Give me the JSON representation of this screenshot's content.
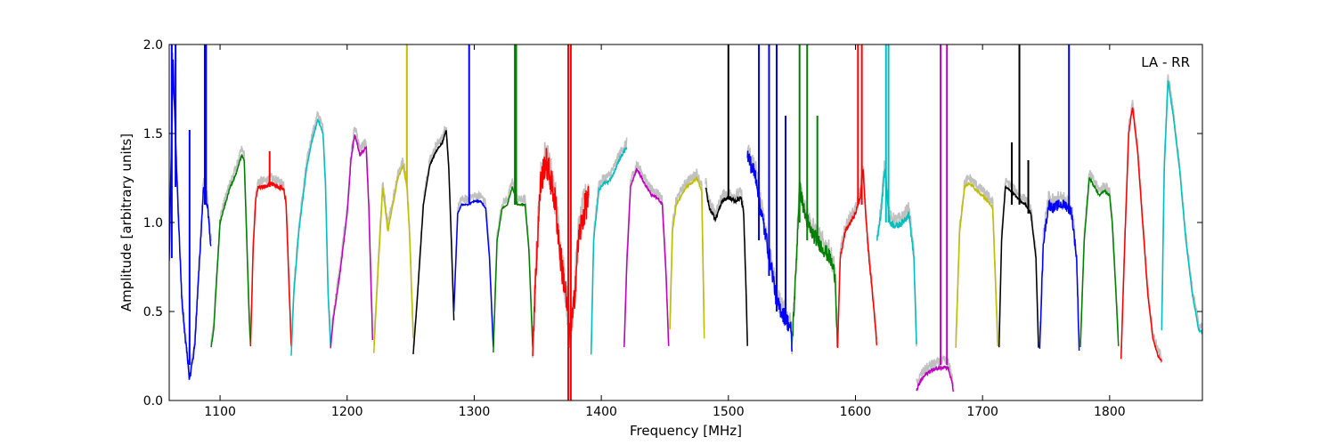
{
  "chart_data": {
    "type": "line",
    "xlabel": "Frequency [MHz]",
    "ylabel": "Amplitude [arbitrary units]",
    "xlim": [
      1060,
      1873
    ],
    "ylim": [
      0.0,
      2.0
    ],
    "xticks": [
      1100,
      1200,
      1300,
      1400,
      1500,
      1600,
      1700,
      1800
    ],
    "xtick_labels": [
      "1100",
      "1200",
      "1300",
      "1400",
      "1500",
      "1600",
      "1700",
      "1800"
    ],
    "yticks": [
      0.0,
      0.5,
      1.0,
      1.5,
      2.0
    ],
    "ytick_labels": [
      "0.0",
      "0.5",
      "1.0",
      "1.5",
      "2.0"
    ],
    "legend": {
      "text": "LA - RR",
      "placement": "top-right"
    },
    "background_color": "#c0c0c0",
    "bands": [
      {
        "color": "#0000ff",
        "noise": 0.02,
        "x": [
          1060,
          1063,
          1066,
          1070,
          1074,
          1076,
          1080,
          1084,
          1087,
          1090,
          1093
        ],
        "y": [
          0.8,
          1.9,
          1.25,
          0.55,
          0.25,
          0.12,
          0.3,
          0.8,
          1.2,
          1.1,
          0.85
        ]
      },
      {
        "color": "#008000",
        "noise": 0.006,
        "x": [
          1093,
          1095,
          1100,
          1108,
          1113,
          1117,
          1119,
          1121,
          1123,
          1124
        ],
        "y": [
          0.3,
          0.4,
          1.0,
          1.2,
          1.28,
          1.38,
          1.35,
          0.9,
          0.45,
          0.3
        ]
      },
      {
        "color": "#ff0000",
        "noise": 0.01,
        "x": [
          1124,
          1126,
          1128,
          1130,
          1135,
          1140,
          1145,
          1150,
          1152,
          1154,
          1156
        ],
        "y": [
          0.3,
          0.85,
          1.12,
          1.2,
          1.2,
          1.22,
          1.2,
          1.19,
          1.1,
          0.7,
          0.3
        ]
      },
      {
        "color": "#00bfbf",
        "noise": 0.005,
        "x": [
          1156,
          1158,
          1162,
          1168,
          1172,
          1177,
          1181,
          1183,
          1185,
          1187
        ],
        "y": [
          0.25,
          0.6,
          0.95,
          1.3,
          1.45,
          1.58,
          1.5,
          1.2,
          0.6,
          0.3
        ]
      },
      {
        "color": "#bf00bf",
        "noise": 0.01,
        "x": [
          1187,
          1189,
          1195,
          1200,
          1203,
          1206,
          1210,
          1215,
          1217,
          1219,
          1220
        ],
        "y": [
          0.3,
          0.45,
          0.75,
          1.05,
          1.35,
          1.5,
          1.38,
          1.42,
          1.1,
          0.6,
          0.35
        ]
      },
      {
        "color": "#bfbf00",
        "noise": 0.006,
        "x": [
          1221,
          1223,
          1228,
          1232,
          1236,
          1240,
          1244,
          1247,
          1249,
          1252
        ],
        "y": [
          0.27,
          0.55,
          1.2,
          0.95,
          1.1,
          1.25,
          1.32,
          1.2,
          0.95,
          0.35
        ]
      },
      {
        "color": "#000000",
        "noise": 0.004,
        "x": [
          1252,
          1255,
          1260,
          1265,
          1270,
          1275,
          1278,
          1280,
          1282,
          1284
        ],
        "y": [
          0.26,
          0.55,
          1.1,
          1.32,
          1.4,
          1.45,
          1.52,
          1.3,
          0.9,
          0.45
        ]
      },
      {
        "color": "#0000ff",
        "noise": 0.003,
        "x": [
          1284,
          1287,
          1290,
          1295,
          1300,
          1305,
          1309,
          1312,
          1315
        ],
        "y": [
          0.5,
          1.05,
          1.1,
          1.1,
          1.12,
          1.12,
          1.08,
          0.8,
          0.3
        ]
      },
      {
        "color": "#008000",
        "noise": 0.003,
        "x": [
          1315,
          1318,
          1322,
          1326,
          1330,
          1334,
          1338,
          1340,
          1343,
          1346
        ],
        "y": [
          0.27,
          0.9,
          1.08,
          1.1,
          1.2,
          1.1,
          1.1,
          1.1,
          0.85,
          0.3
        ]
      },
      {
        "color": "#ff0000",
        "noise": 0.09,
        "x": [
          1346,
          1349,
          1352,
          1356,
          1360,
          1364,
          1368,
          1372,
          1375,
          1378,
          1382,
          1386,
          1390
        ],
        "y": [
          0.3,
          0.8,
          1.2,
          1.35,
          1.25,
          1.1,
          0.8,
          0.6,
          0.35,
          0.5,
          0.9,
          1.05,
          1.15
        ]
      },
      {
        "color": "#00bfbf",
        "noise": 0.008,
        "x": [
          1392,
          1394,
          1398,
          1402,
          1406,
          1410,
          1414,
          1418,
          1420
        ],
        "y": [
          0.25,
          0.9,
          1.18,
          1.22,
          1.23,
          1.28,
          1.35,
          1.4,
          1.42
        ]
      },
      {
        "color": "#bf00bf",
        "noise": 0.007,
        "x": [
          1418,
          1420,
          1423,
          1428,
          1434,
          1440,
          1444,
          1448,
          1451,
          1453
        ],
        "y": [
          0.3,
          0.75,
          1.2,
          1.3,
          1.22,
          1.15,
          1.14,
          1.1,
          0.7,
          0.3
        ]
      },
      {
        "color": "#bfbf00",
        "noise": 0.006,
        "x": [
          1454,
          1456,
          1459,
          1463,
          1467,
          1471,
          1475,
          1479,
          1481
        ],
        "y": [
          0.4,
          0.95,
          1.1,
          1.15,
          1.2,
          1.22,
          1.25,
          1.18,
          0.35
        ]
      },
      {
        "color": "#000000",
        "noise": 0.012,
        "x": [
          1482,
          1485,
          1490,
          1495,
          1500,
          1505,
          1510,
          1512,
          1514,
          1515
        ],
        "y": [
          1.2,
          1.08,
          1.02,
          1.12,
          1.14,
          1.12,
          1.14,
          1.05,
          0.6,
          0.3
        ]
      },
      {
        "color": "#0000ff",
        "noise": 0.05,
        "x": [
          1515,
          1518,
          1522,
          1526,
          1530,
          1534,
          1538,
          1542,
          1546,
          1549,
          1550
        ],
        "y": [
          1.38,
          1.32,
          1.25,
          1.05,
          0.9,
          0.75,
          0.55,
          0.5,
          0.45,
          0.4,
          0.3
        ]
      },
      {
        "color": "#008000",
        "noise": 0.045,
        "x": [
          1550,
          1553,
          1556,
          1560,
          1565,
          1570,
          1575,
          1580,
          1584,
          1586
        ],
        "y": [
          0.3,
          0.7,
          1.2,
          1.05,
          0.95,
          0.9,
          0.85,
          0.8,
          0.7,
          0.28
        ]
      },
      {
        "color": "#ff0000",
        "noise": 0.012,
        "x": [
          1586,
          1588,
          1592,
          1596,
          1600,
          1604,
          1606,
          1608,
          1610,
          1614,
          1617
        ],
        "y": [
          0.3,
          0.8,
          0.95,
          1.0,
          1.05,
          1.15,
          1.3,
          1.05,
          0.85,
          0.55,
          0.3
        ]
      },
      {
        "color": "#00bfbf",
        "noise": 0.02,
        "x": [
          1617,
          1620,
          1623,
          1627,
          1632,
          1637,
          1642,
          1646,
          1648
        ],
        "y": [
          0.9,
          1.05,
          1.3,
          1.0,
          0.98,
          1.0,
          1.05,
          0.8,
          0.3
        ]
      },
      {
        "color": "#bf00bf",
        "noise": 0.01,
        "x": [
          1648,
          1652,
          1656,
          1660,
          1665,
          1670,
          1673,
          1676,
          1677
        ],
        "y": [
          0.06,
          0.12,
          0.15,
          0.17,
          0.18,
          0.19,
          0.18,
          0.1,
          0.05
        ]
      },
      {
        "color": "#bfbf00",
        "noise": 0.007,
        "x": [
          1679,
          1682,
          1686,
          1690,
          1695,
          1700,
          1704,
          1708,
          1712
        ],
        "y": [
          0.3,
          0.95,
          1.2,
          1.22,
          1.18,
          1.15,
          1.12,
          1.08,
          0.3
        ]
      },
      {
        "color": "#000000",
        "noise": 0.005,
        "x": [
          1713,
          1715,
          1718,
          1722,
          1726,
          1730,
          1734,
          1738,
          1742,
          1744
        ],
        "y": [
          0.3,
          0.9,
          1.2,
          1.18,
          1.15,
          1.12,
          1.1,
          1.05,
          0.8,
          0.3
        ]
      },
      {
        "color": "#0000ff",
        "noise": 0.03,
        "x": [
          1745,
          1748,
          1752,
          1756,
          1760,
          1765,
          1770,
          1774,
          1776
        ],
        "y": [
          0.32,
          0.9,
          1.1,
          1.08,
          1.1,
          1.1,
          1.06,
          0.8,
          0.3
        ]
      },
      {
        "color": "#008000",
        "noise": 0.006,
        "x": [
          1777,
          1780,
          1784,
          1788,
          1792,
          1796,
          1800,
          1802,
          1805,
          1807
        ],
        "y": [
          0.3,
          0.9,
          1.25,
          1.2,
          1.15,
          1.18,
          1.15,
          1.0,
          0.6,
          0.3
        ]
      },
      {
        "color": "#ff0000",
        "noise": 0.006,
        "x": [
          1809,
          1812,
          1815,
          1818,
          1822,
          1826,
          1830,
          1834,
          1838,
          1841
        ],
        "y": [
          0.23,
          0.9,
          1.5,
          1.65,
          1.4,
          1.0,
          0.6,
          0.35,
          0.25,
          0.22
        ]
      },
      {
        "color": "#00bfbf",
        "noise": 0.006,
        "x": [
          1841,
          1843,
          1846,
          1850,
          1855,
          1860,
          1865,
          1870,
          1873
        ],
        "y": [
          0.4,
          1.3,
          1.8,
          1.6,
          1.3,
          0.9,
          0.6,
          0.4,
          0.38
        ]
      }
    ],
    "spikes": [
      {
        "color": "#0000ff",
        "x": 1062,
        "y0": 0.8,
        "y1": 2.0
      },
      {
        "color": "#0000ff",
        "x": 1065,
        "y0": 1.2,
        "y1": 2.0
      },
      {
        "color": "#0000ff",
        "x": 1076,
        "y0": 0.2,
        "y1": 1.52
      },
      {
        "color": "#0000ff",
        "x": 1088,
        "y0": 1.1,
        "y1": 2.0
      },
      {
        "color": "#0000ff",
        "x": 1089,
        "y0": 1.1,
        "y1": 2.0
      },
      {
        "color": "#ff0000",
        "x": 1139,
        "y0": 1.2,
        "y1": 1.4
      },
      {
        "color": "#bfbf00",
        "x": 1247,
        "y0": 1.2,
        "y1": 2.0
      },
      {
        "color": "#0000ff",
        "x": 1296,
        "y0": 1.1,
        "y1": 2.0
      },
      {
        "color": "#008000",
        "x": 1332,
        "y0": 1.1,
        "y1": 2.0
      },
      {
        "color": "#008000",
        "x": 1333,
        "y0": 1.1,
        "y1": 2.0
      },
      {
        "color": "#ff0000",
        "x": 1374,
        "y0": 0.0,
        "y1": 2.0
      },
      {
        "color": "#ff0000",
        "x": 1376,
        "y0": 0.0,
        "y1": 2.0
      },
      {
        "color": "#000000",
        "x": 1500,
        "y0": 1.14,
        "y1": 2.0
      },
      {
        "color": "#0000ff",
        "x": 1524,
        "y0": 0.9,
        "y1": 2.0
      },
      {
        "color": "#0000ff",
        "x": 1532,
        "y0": 0.7,
        "y1": 2.0
      },
      {
        "color": "#0000ff",
        "x": 1538,
        "y0": 0.5,
        "y1": 2.0
      },
      {
        "color": "#0000ff",
        "x": 1545,
        "y0": 0.45,
        "y1": 1.6
      },
      {
        "color": "#008000",
        "x": 1556,
        "y0": 1.0,
        "y1": 2.0
      },
      {
        "color": "#008000",
        "x": 1562,
        "y0": 0.9,
        "y1": 2.0
      },
      {
        "color": "#008000",
        "x": 1570,
        "y0": 0.9,
        "y1": 1.6
      },
      {
        "color": "#ff0000",
        "x": 1602,
        "y0": 1.1,
        "y1": 2.0
      },
      {
        "color": "#ff0000",
        "x": 1605,
        "y0": 1.1,
        "y1": 2.0
      },
      {
        "color": "#00bfbf",
        "x": 1624,
        "y0": 1.0,
        "y1": 2.0
      },
      {
        "color": "#00bfbf",
        "x": 1626,
        "y0": 1.0,
        "y1": 2.0
      },
      {
        "color": "#bf00bf",
        "x": 1667,
        "y0": 0.2,
        "y1": 2.0
      },
      {
        "color": "#bf00bf",
        "x": 1672,
        "y0": 0.2,
        "y1": 2.0
      },
      {
        "color": "#000000",
        "x": 1729,
        "y0": 1.1,
        "y1": 2.0
      },
      {
        "color": "#000000",
        "x": 1723,
        "y0": 1.1,
        "y1": 1.45
      },
      {
        "color": "#000000",
        "x": 1736,
        "y0": 1.05,
        "y1": 1.35
      },
      {
        "color": "#0000ff",
        "x": 1768,
        "y0": 1.05,
        "y1": 2.0
      }
    ]
  }
}
